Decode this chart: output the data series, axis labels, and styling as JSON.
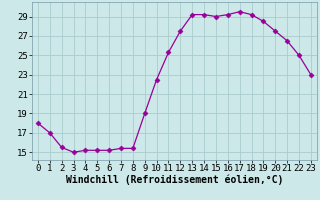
{
  "x": [
    0,
    1,
    2,
    3,
    4,
    5,
    6,
    7,
    8,
    9,
    10,
    11,
    12,
    13,
    14,
    15,
    16,
    17,
    18,
    19,
    20,
    21,
    22,
    23
  ],
  "y": [
    18.0,
    17.0,
    15.5,
    15.0,
    15.2,
    15.2,
    15.2,
    15.4,
    15.4,
    19.0,
    22.5,
    25.3,
    27.5,
    29.2,
    29.2,
    29.0,
    29.2,
    29.5,
    29.2,
    28.5,
    27.5,
    26.5,
    25.0,
    23.0
  ],
  "line_color": "#990099",
  "marker": "D",
  "marker_size": 2.5,
  "bg_color": "#cce8e8",
  "grid_color": "#aacccc",
  "xlabel": "Windchill (Refroidissement éolien,°C)",
  "xlabel_fontsize": 7,
  "tick_fontsize": 6.5,
  "xlim": [
    -0.5,
    23.5
  ],
  "ylim": [
    14.2,
    30.5
  ],
  "yticks": [
    15,
    17,
    19,
    21,
    23,
    25,
    27,
    29
  ],
  "xticks": [
    0,
    1,
    2,
    3,
    4,
    5,
    6,
    7,
    8,
    9,
    10,
    11,
    12,
    13,
    14,
    15,
    16,
    17,
    18,
    19,
    20,
    21,
    22,
    23
  ]
}
